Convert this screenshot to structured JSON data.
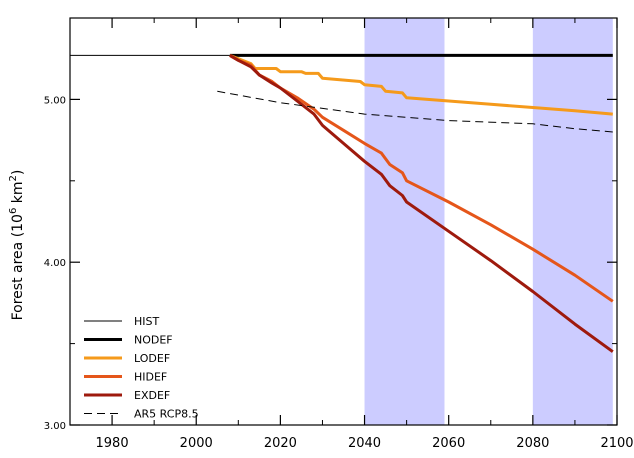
{
  "chart_data": {
    "type": "line",
    "title": "",
    "xlabel": "",
    "ylabel_parts": {
      "base": "Forest area (10",
      "sup1": "6",
      "mid": " km",
      "sup2": "2",
      "end": ")"
    },
    "xlim": [
      1970,
      2100
    ],
    "ylim": [
      3.0,
      5.5
    ],
    "xticks": [
      "1980",
      "2000",
      "2020",
      "2040",
      "2060",
      "2080",
      "2100"
    ],
    "xtick_values": [
      1980,
      2000,
      2020,
      2040,
      2060,
      2080,
      2100
    ],
    "yticks": [
      "3.00",
      "4.00",
      "5.00"
    ],
    "ytick_values": [
      3.0,
      4.0,
      5.0
    ],
    "grid": false,
    "legend_position": "bottom-left",
    "shaded_periods": [
      {
        "from": 2040,
        "to": 2059,
        "color": "#ccccff"
      },
      {
        "from": 2080,
        "to": 2099,
        "color": "#ccccff"
      }
    ],
    "series": [
      {
        "name": "HIST",
        "color": "#000000",
        "width": 1,
        "dash": "",
        "x": [
          1970,
          2008
        ],
        "y": [
          5.27,
          5.27
        ]
      },
      {
        "name": "NODEF",
        "color": "#000000",
        "width": 3,
        "dash": "",
        "x": [
          2008,
          2099
        ],
        "y": [
          5.27,
          5.27
        ]
      },
      {
        "name": "LODEF",
        "color": "#f59a1b",
        "width": 3,
        "dash": "",
        "x": [
          2008,
          2013,
          2014,
          2019,
          2020,
          2025,
          2026,
          2029,
          2030,
          2039,
          2040,
          2044,
          2045,
          2049,
          2050,
          2060,
          2070,
          2080,
          2090,
          2099
        ],
        "y": [
          5.27,
          5.22,
          5.19,
          5.19,
          5.17,
          5.17,
          5.16,
          5.16,
          5.13,
          5.11,
          5.09,
          5.08,
          5.05,
          5.04,
          5.01,
          4.99,
          4.97,
          4.95,
          4.93,
          4.91
        ]
      },
      {
        "name": "HIDEF",
        "color": "#e5561a",
        "width": 3,
        "dash": "",
        "x": [
          2008,
          2010,
          2013,
          2015,
          2018,
          2020,
          2024,
          2028,
          2030,
          2035,
          2040,
          2044,
          2046,
          2049,
          2050,
          2060,
          2070,
          2080,
          2090,
          2099
        ],
        "y": [
          5.27,
          5.24,
          5.21,
          5.15,
          5.11,
          5.07,
          5.01,
          4.94,
          4.89,
          4.81,
          4.73,
          4.67,
          4.6,
          4.55,
          4.5,
          4.37,
          4.23,
          4.08,
          3.92,
          3.76
        ]
      },
      {
        "name": "EXDEF",
        "color": "#9e1a0d",
        "width": 3,
        "dash": "",
        "x": [
          2008,
          2010,
          2013,
          2015,
          2018,
          2020,
          2024,
          2028,
          2030,
          2035,
          2040,
          2044,
          2046,
          2049,
          2050,
          2060,
          2070,
          2080,
          2090,
          2099
        ],
        "y": [
          5.27,
          5.24,
          5.2,
          5.15,
          5.1,
          5.07,
          4.99,
          4.91,
          4.84,
          4.73,
          4.62,
          4.54,
          4.47,
          4.41,
          4.37,
          4.19,
          4.01,
          3.82,
          3.62,
          3.45
        ]
      },
      {
        "name": "AR5 RCP8.5",
        "color": "#000000",
        "width": 1,
        "dash": "8,5",
        "x": [
          2005,
          2020,
          2040,
          2060,
          2080,
          2090,
          2099
        ],
        "y": [
          5.05,
          4.98,
          4.91,
          4.87,
          4.85,
          4.82,
          4.8
        ]
      }
    ]
  }
}
